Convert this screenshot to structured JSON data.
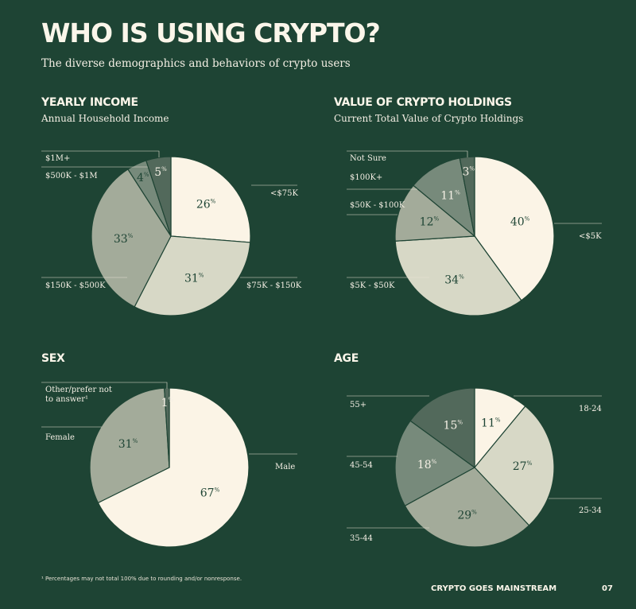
{
  "page": {
    "title": "WHO IS USING CRYPTO?",
    "subtitle": "The diverse demographics and behaviors of crypto users",
    "footnote": "¹ Percentages may not total 100% due to rounding and/or nonresponse.",
    "footer_brand": "CRYPTO GOES MAINSTREAM",
    "footer_page": "07"
  },
  "colors": {
    "background": "#1e4434",
    "cream": "#fbf4e6",
    "light": "#d7d8c6",
    "mid": "#a3ab9a",
    "dark": "#778a7b",
    "darkest": "#52695b",
    "label_dark": "#1e4434",
    "label_light": "#f4efe4"
  },
  "chart_data": [
    {
      "type": "pie",
      "title": "YEARLY INCOME",
      "subtitle": "Annual Household Income",
      "slices": [
        {
          "label": "<$75K",
          "value": 26,
          "color": "#fbf4e6"
        },
        {
          "label": "$75K - $150K",
          "value": 31,
          "color": "#d7d8c6"
        },
        {
          "label": "$150K - $500K",
          "value": 33,
          "color": "#a3ab9a"
        },
        {
          "label": "$500K - $1M",
          "value": 4,
          "color": "#778a7b"
        },
        {
          "label": "$1M+",
          "value": 5,
          "color": "#52695b"
        }
      ]
    },
    {
      "type": "pie",
      "title": "VALUE OF CRYPTO HOLDINGS",
      "subtitle": "Current Total Value of Crypto Holdings",
      "slices": [
        {
          "label": "<$5K",
          "value": 40,
          "color": "#fbf4e6"
        },
        {
          "label": "$5K - $50K",
          "value": 34,
          "color": "#d7d8c6"
        },
        {
          "label": "$50K - $100K",
          "value": 12,
          "color": "#a3ab9a"
        },
        {
          "label": "$100K+",
          "value": 11,
          "color": "#778a7b"
        },
        {
          "label": "Not Sure",
          "value": 3,
          "color": "#52695b"
        }
      ]
    },
    {
      "type": "pie",
      "title": "SEX",
      "subtitle": "",
      "slices": [
        {
          "label": "Male",
          "value": 67,
          "color": "#fbf4e6"
        },
        {
          "label": "Female",
          "value": 31,
          "color": "#a3ab9a"
        },
        {
          "label": "Other/prefer not to answer¹",
          "value": 1,
          "color": "#52695b"
        }
      ]
    },
    {
      "type": "pie",
      "title": "AGE",
      "subtitle": "",
      "slices": [
        {
          "label": "18-24",
          "value": 11,
          "color": "#fbf4e6"
        },
        {
          "label": "25-34",
          "value": 27,
          "color": "#d7d8c6"
        },
        {
          "label": "35-44",
          "value": 29,
          "color": "#a3ab9a"
        },
        {
          "label": "45-54",
          "value": 18,
          "color": "#778a7b"
        },
        {
          "label": "55+",
          "value": 15,
          "color": "#52695b"
        }
      ]
    }
  ]
}
